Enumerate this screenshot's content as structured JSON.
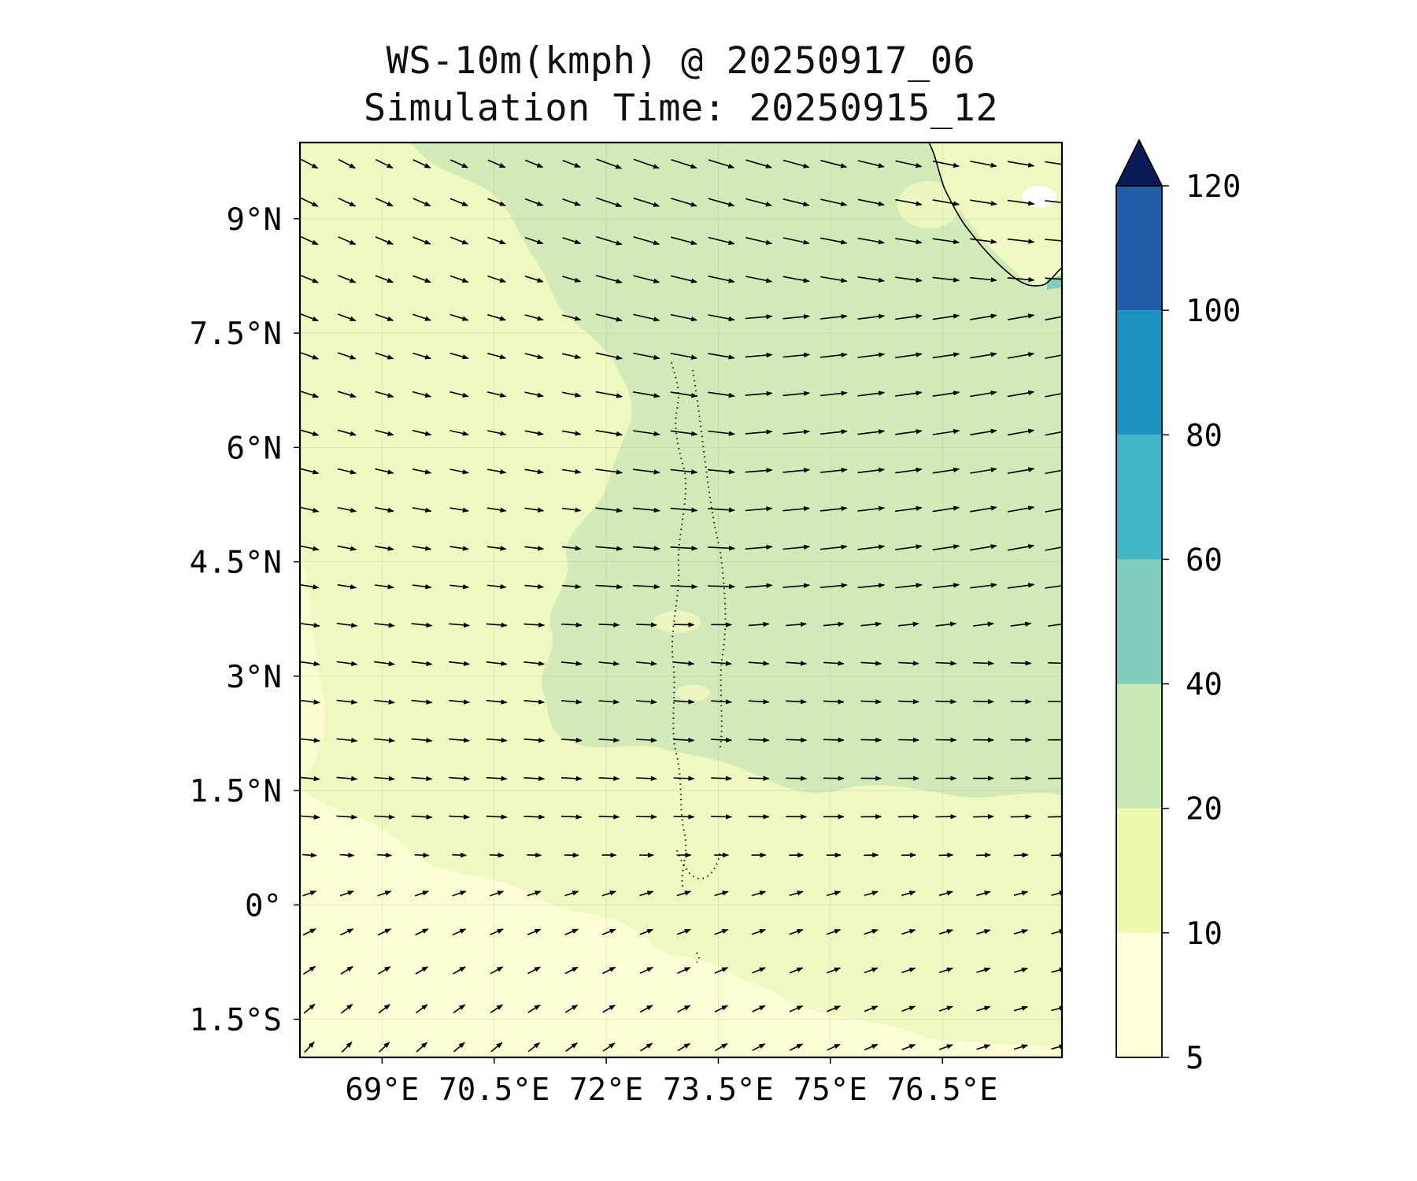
{
  "title": "WS-10m(kmph) @ 20250917_06",
  "subtitle": "Simulation Time: 20250915_12",
  "map": {
    "variable": "10 m wind speed",
    "lon_range": [
      67.9,
      78.1
    ],
    "lat_range": [
      -2.0,
      10.0
    ],
    "lat_ticks": [
      {
        "value": 9.0,
        "label": "9°N"
      },
      {
        "value": 7.5,
        "label": "7.5°N"
      },
      {
        "value": 6.0,
        "label": "6°N"
      },
      {
        "value": 4.5,
        "label": "4.5°N"
      },
      {
        "value": 3.0,
        "label": "3°N"
      },
      {
        "value": 1.5,
        "label": "1.5°N"
      },
      {
        "value": 0.0,
        "label": "0°"
      },
      {
        "value": -1.5,
        "label": "1.5°S"
      }
    ],
    "lon_ticks": [
      {
        "value": 69.0,
        "label": "69°E"
      },
      {
        "value": 70.5,
        "label": "70.5°E"
      },
      {
        "value": 72.0,
        "label": "72°E"
      },
      {
        "value": 73.5,
        "label": "73.5°E"
      },
      {
        "value": 75.0,
        "label": "75°E"
      },
      {
        "value": 76.5,
        "label": "76.5°E"
      }
    ],
    "gridlines": true,
    "features": [
      "Maldives atolls (dotted outline near 73°E–73.7°E)",
      "South-west coast of India (top-right corner)"
    ]
  },
  "colorbar": {
    "extend": "max",
    "levels": [
      5,
      10,
      20,
      40,
      60,
      80,
      100,
      120
    ],
    "tick_labels": [
      "5",
      "10",
      "20",
      "40",
      "60",
      "80",
      "100",
      "120"
    ],
    "colors": [
      "#ffffd9",
      "#edf8b1",
      "#c7e9b4",
      "#7fcdbb",
      "#41b6c4",
      "#1d91c0",
      "#225ea8",
      "#0c2c6e"
    ],
    "extend_color": "#081d58"
  },
  "colors": {
    "band_5_10": "#fcfdd6",
    "band_10_20": "#eef8c0",
    "band_20_40": "#d2eab8",
    "band_40_60": "#7fcdbb",
    "axis": "#000000"
  }
}
